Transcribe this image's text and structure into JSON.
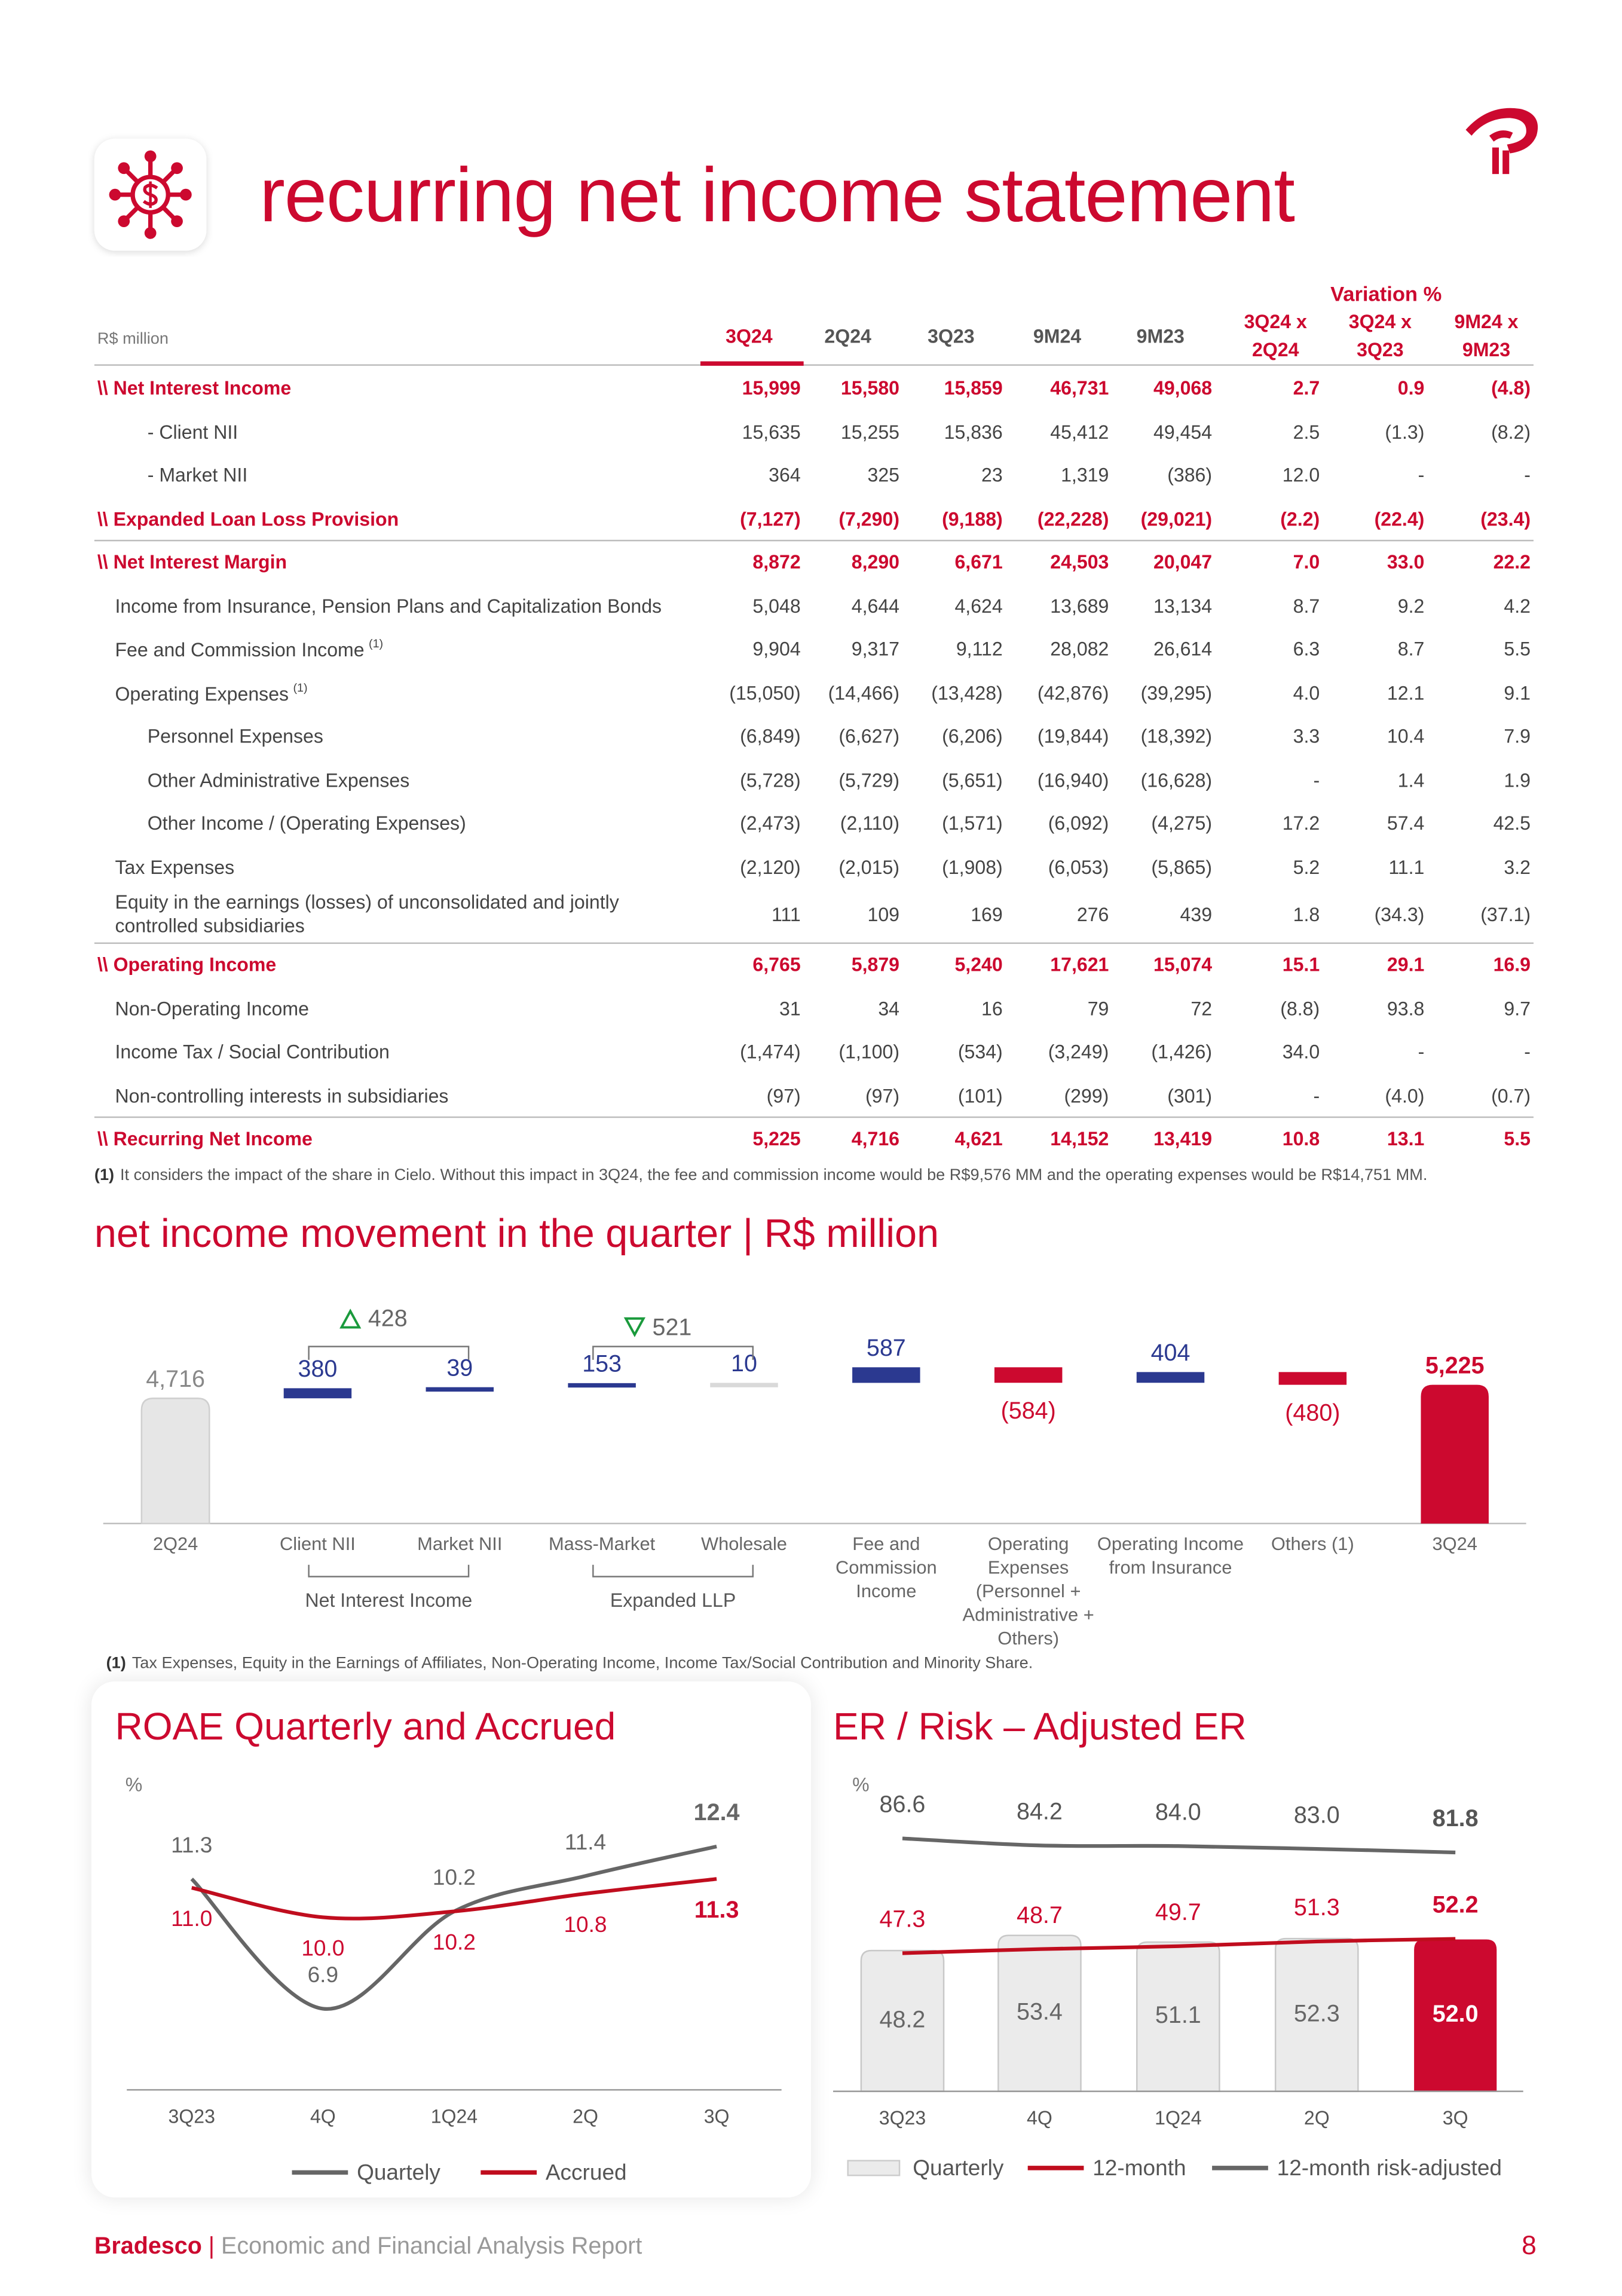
{
  "header": {
    "title": "recurring net income statement"
  },
  "table": {
    "unit": "R$ million",
    "columns": [
      "3Q24",
      "2Q24",
      "3Q23",
      "9M24",
      "9M23"
    ],
    "variation_title": "Variation %",
    "variation_columns": [
      [
        "3Q24 x",
        "2Q24"
      ],
      [
        "3Q24 x",
        "3Q23"
      ],
      [
        "9M24 x",
        "9M23"
      ]
    ],
    "rows": [
      {
        "label": "\\\\ Net Interest Income",
        "style": "total",
        "indent": 0,
        "cells": [
          "15,999",
          "15,580",
          "15,859",
          "46,731",
          "49,068",
          "2.7",
          "0.9",
          "(4.8)"
        ]
      },
      {
        "label": "- Client NII",
        "style": "item",
        "indent": 2,
        "cells": [
          "15,635",
          "15,255",
          "15,836",
          "45,412",
          "49,454",
          "2.5",
          "(1.3)",
          "(8.2)"
        ]
      },
      {
        "label": "- Market NII",
        "style": "item",
        "indent": 2,
        "cells": [
          "364",
          "325",
          "23",
          "1,319",
          "(386)",
          "12.0",
          "-",
          "-"
        ]
      },
      {
        "label": "\\\\ Expanded Loan Loss Provision",
        "style": "total",
        "indent": 0,
        "cells": [
          "(7,127)",
          "(7,290)",
          "(9,188)",
          "(22,228)",
          "(29,021)",
          "(2.2)",
          "(22.4)",
          "(23.4)"
        ]
      },
      {
        "label": "\\\\ Net Interest Margin",
        "style": "total",
        "indent": 0,
        "cells": [
          "8,872",
          "8,290",
          "6,671",
          "24,503",
          "20,047",
          "7.0",
          "33.0",
          "22.2"
        ]
      },
      {
        "label": "Income from Insurance, Pension Plans and Capitalization Bonds",
        "style": "item",
        "indent": 1,
        "cells": [
          "5,048",
          "4,644",
          "4,624",
          "13,689",
          "13,134",
          "8.7",
          "9.2",
          "4.2"
        ]
      },
      {
        "label": "Fee and Commission Income",
        "note": "(1)",
        "style": "item",
        "indent": 1,
        "cells": [
          "9,904",
          "9,317",
          "9,112",
          "28,082",
          "26,614",
          "6.3",
          "8.7",
          "5.5"
        ]
      },
      {
        "label": "Operating Expenses",
        "note": "(1)",
        "style": "item",
        "indent": 1,
        "cells": [
          "(15,050)",
          "(14,466)",
          "(13,428)",
          "(42,876)",
          "(39,295)",
          "4.0",
          "12.1",
          "9.1"
        ]
      },
      {
        "label": "Personnel Expenses",
        "style": "item",
        "indent": 2,
        "cells": [
          "(6,849)",
          "(6,627)",
          "(6,206)",
          "(19,844)",
          "(18,392)",
          "3.3",
          "10.4",
          "7.9"
        ]
      },
      {
        "label": "Other Administrative Expenses",
        "style": "item",
        "indent": 2,
        "cells": [
          "(5,728)",
          "(5,729)",
          "(5,651)",
          "(16,940)",
          "(16,628)",
          "-",
          "1.4",
          "1.9"
        ]
      },
      {
        "label": "Other Income / (Operating Expenses)",
        "style": "item",
        "indent": 2,
        "cells": [
          "(2,473)",
          "(2,110)",
          "(1,571)",
          "(6,092)",
          "(4,275)",
          "17.2",
          "57.4",
          "42.5"
        ]
      },
      {
        "label": "Tax Expenses",
        "style": "item",
        "indent": 1,
        "cells": [
          "(2,120)",
          "(2,015)",
          "(1,908)",
          "(6,053)",
          "(5,865)",
          "5.2",
          "11.1",
          "3.2"
        ]
      },
      {
        "label": "Equity in the earnings (losses) of unconsolidated and jointly controlled subsidiaries",
        "style": "item",
        "indent": 1,
        "cells": [
          "111",
          "109",
          "169",
          "276",
          "439",
          "1.8",
          "(34.3)",
          "(37.1)"
        ]
      },
      {
        "label": "\\\\ Operating Income",
        "style": "total",
        "indent": 0,
        "cells": [
          "6,765",
          "5,879",
          "5,240",
          "17,621",
          "15,074",
          "15.1",
          "29.1",
          "16.9"
        ]
      },
      {
        "label": "Non-Operating Income",
        "style": "item",
        "indent": 1,
        "cells": [
          "31",
          "34",
          "16",
          "79",
          "72",
          "(8.8)",
          "93.8",
          "9.7"
        ]
      },
      {
        "label": "Income Tax / Social Contribution",
        "style": "item",
        "indent": 1,
        "cells": [
          "(1,474)",
          "(1,100)",
          "(534)",
          "(3,249)",
          "(1,426)",
          "34.0",
          "-",
          "-"
        ]
      },
      {
        "label": "Non-controlling interests in subsidiaries",
        "style": "item",
        "indent": 1,
        "cells": [
          "(97)",
          "(97)",
          "(101)",
          "(299)",
          "(301)",
          "-",
          "(4.0)",
          "(0.7)"
        ]
      },
      {
        "label": "\\\\ Recurring Net Income",
        "style": "total",
        "indent": 0,
        "cells": [
          "5,225",
          "4,716",
          "4,621",
          "14,152",
          "13,419",
          "10.8",
          "13.1",
          "5.5"
        ]
      }
    ],
    "footnote": {
      "marker": "(1)",
      "text": "It considers the impact of the share in Cielo. Without this impact in 3Q24, the fee and commission income would be R$9,576 MM and the operating expenses would be R$14,751 MM."
    }
  },
  "chart_data": [
    {
      "type": "waterfall",
      "title": "net income movement in the quarter | R$ million",
      "categories": [
        "2Q24",
        "Client NII",
        "Market NII",
        "Mass-Market",
        "Wholesale",
        "Fee and Commission Income",
        "Operating Expenses (Personnel + Administrative + Others)",
        "Operating Income from Insurance",
        "Others (1)",
        "3Q24"
      ],
      "values": [
        4716,
        380,
        39,
        153,
        10,
        587,
        -584,
        404,
        -480,
        5225
      ],
      "value_labels": [
        "4,716",
        "380",
        "39",
        "153",
        "10",
        "587",
        "(584)",
        "404",
        "(480)",
        "5,225"
      ],
      "colors": [
        "#e6e6e6",
        "#2b3990",
        "#2b3990",
        "#2b3990",
        "#d9d9d9",
        "#2b3990",
        "#cc092f",
        "#2b3990",
        "#cc092f",
        "#cc092f"
      ],
      "ylim": [
        0,
        6000
      ],
      "brackets": [
        {
          "label": "428",
          "trend": "up"
        },
        {
          "label": "521",
          "trend": "down"
        }
      ],
      "groups": [
        "Net Interest Income",
        "Expanded LLP"
      ],
      "footnote": {
        "marker": "(1)",
        "text": "Tax Expenses, Equity in the Earnings of Affiliates, Non-Operating Income, Income Tax/Social Contribution and Minority Share."
      }
    },
    {
      "type": "line",
      "title": "ROAE Quarterly and Accrued",
      "unit": "%",
      "categories": [
        "3Q23",
        "4Q",
        "1Q24",
        "2Q",
        "3Q"
      ],
      "series": [
        {
          "name": "Quartely",
          "color": "#666666",
          "values": [
            11.3,
            6.9,
            10.2,
            11.4,
            12.4
          ],
          "value_labels": [
            "11.3",
            "6.9",
            "10.2",
            "11.4",
            "12.4"
          ]
        },
        {
          "name": "Accrued",
          "color": "#c00d1e",
          "values": [
            11.0,
            10.0,
            10.2,
            10.8,
            11.3
          ],
          "value_labels": [
            "11.0",
            "10.0",
            "10.2",
            "10.8",
            "11.3"
          ]
        }
      ],
      "ylim": [
        5,
        13
      ]
    },
    {
      "type": "bar_line",
      "title": "ER / Risk – Adjusted ER",
      "unit": "%",
      "categories": [
        "3Q23",
        "4Q",
        "1Q24",
        "2Q",
        "3Q"
      ],
      "series": [
        {
          "name": "Quarterly",
          "type": "bar",
          "color": "#ebebeb",
          "highlight_color": "#cc092f",
          "values": [
            48.2,
            53.4,
            51.1,
            52.3,
            52.0
          ],
          "value_labels": [
            "48.2",
            "53.4",
            "51.1",
            "52.3",
            "52.0"
          ]
        },
        {
          "name": "12-month",
          "type": "line",
          "color": "#c00d1e",
          "values": [
            47.3,
            48.7,
            49.7,
            51.3,
            52.2
          ],
          "value_labels": [
            "47.3",
            "48.7",
            "49.7",
            "51.3",
            "52.2"
          ]
        },
        {
          "name": "12-month risk-adjusted",
          "type": "line",
          "color": "#666666",
          "values": [
            86.6,
            84.2,
            84.0,
            83.0,
            81.8
          ],
          "value_labels": [
            "86.6",
            "84.2",
            "84.0",
            "83.0",
            "81.8"
          ]
        }
      ],
      "ylim": [
        0,
        100
      ]
    }
  ],
  "footer": {
    "brand": "Bradesco",
    "separator": "|",
    "text": "Economic and Financial Analysis Report",
    "page": "8"
  }
}
